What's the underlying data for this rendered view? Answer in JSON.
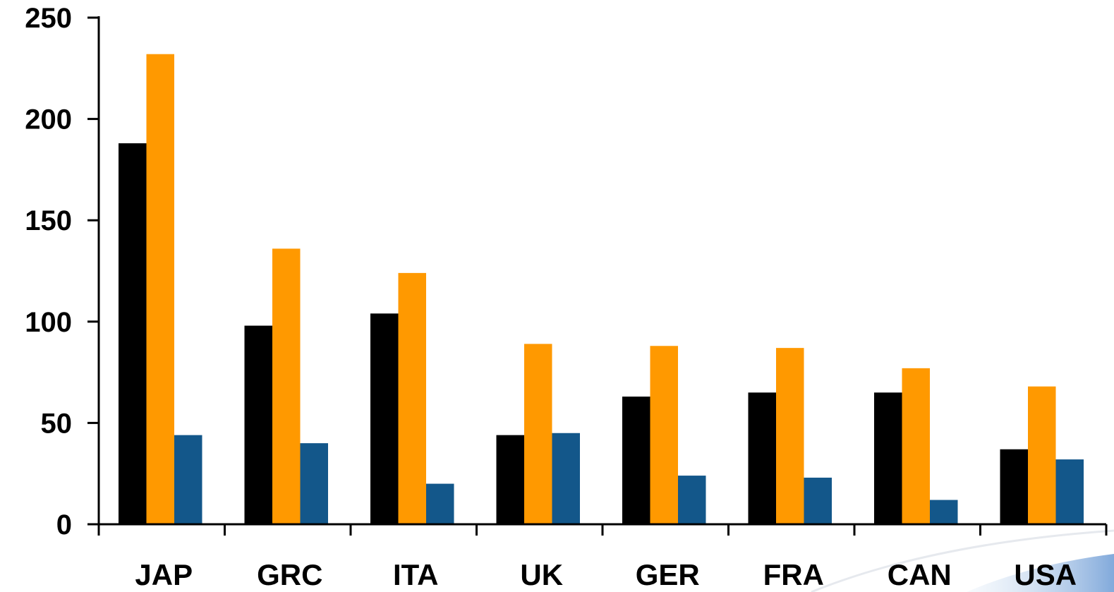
{
  "chart_data": {
    "type": "bar",
    "title": "",
    "xlabel": "",
    "ylabel": "",
    "ylim": [
      0,
      250
    ],
    "yticks": [
      0,
      50,
      100,
      150,
      200,
      250
    ],
    "ytick_labels": [
      "0",
      "50",
      "100",
      "150",
      "200",
      "250"
    ],
    "categories": [
      "JAP",
      "GRC",
      "ITA",
      "UK",
      "GER",
      "FRA",
      "CAN",
      "USA"
    ],
    "series": [
      {
        "color": "#000000",
        "values": [
          188,
          98,
          104,
          44,
          63,
          65,
          65,
          37
        ]
      },
      {
        "color": "#FF9900",
        "values": [
          232,
          136,
          124,
          89,
          88,
          87,
          77,
          68
        ]
      },
      {
        "color": "#13578A",
        "values": [
          44,
          40,
          20,
          45,
          24,
          23,
          12,
          32
        ]
      }
    ],
    "grid": false,
    "legend": "none"
  }
}
